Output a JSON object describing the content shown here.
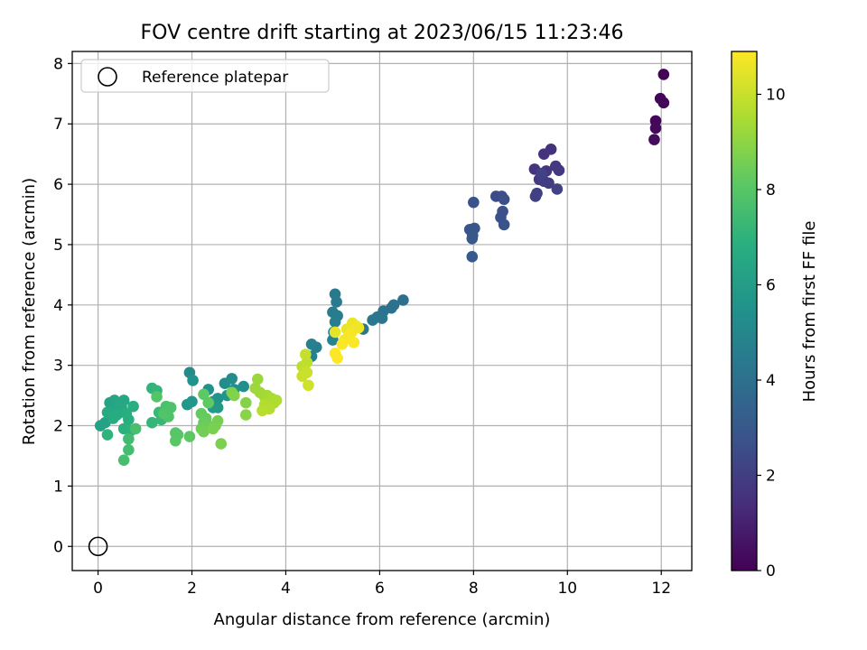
{
  "chart_data": {
    "type": "scatter",
    "title": "FOV centre drift starting at 2023/06/15 11:23:46",
    "xlabel": "Angular distance from reference (arcmin)",
    "ylabel": "Rotation from reference (arcmin)",
    "xlim": [
      -0.55,
      12.65
    ],
    "ylim": [
      -0.4,
      8.2
    ],
    "xticks": [
      "0",
      "2",
      "4",
      "6",
      "8",
      "10",
      "12"
    ],
    "yticks": [
      "0",
      "1",
      "2",
      "3",
      "4",
      "5",
      "6",
      "7",
      "8"
    ],
    "grid": true,
    "legend": {
      "placement": "top-left",
      "entries": [
        "Reference platepar"
      ]
    },
    "reference_point": {
      "x": 0,
      "y": 0,
      "label": "Reference platepar"
    },
    "colorbar": {
      "label": "Hours from first FF file",
      "colormap": "viridis",
      "range": [
        0,
        10.9
      ],
      "ticks": [
        "0",
        "2",
        "4",
        "6",
        "8",
        "10"
      ]
    },
    "series": [
      {
        "name": "",
        "points": [
          [
            12.05,
            7.82,
            0.05
          ],
          [
            11.98,
            7.42,
            0.1
          ],
          [
            12.05,
            7.35,
            0.15
          ],
          [
            11.88,
            7.05,
            0.2
          ],
          [
            11.88,
            6.93,
            0.25
          ],
          [
            11.85,
            6.74,
            0.3
          ],
          [
            9.5,
            6.5,
            1.5
          ],
          [
            9.65,
            6.58,
            1.55
          ],
          [
            9.3,
            6.25,
            1.6
          ],
          [
            9.45,
            6.15,
            1.65
          ],
          [
            9.55,
            6.22,
            1.7
          ],
          [
            9.75,
            6.3,
            1.75
          ],
          [
            9.82,
            6.23,
            1.8
          ],
          [
            9.4,
            6.08,
            1.85
          ],
          [
            9.5,
            6.05,
            1.9
          ],
          [
            9.6,
            6.02,
            1.95
          ],
          [
            9.35,
            5.85,
            2.0
          ],
          [
            9.32,
            5.8,
            2.05
          ],
          [
            9.78,
            5.92,
            2.1
          ],
          [
            9.45,
            6.18,
            2.12
          ],
          [
            8.48,
            5.8,
            2.5
          ],
          [
            8.6,
            5.8,
            2.55
          ],
          [
            8.65,
            5.75,
            2.6
          ],
          [
            8.62,
            5.55,
            2.65
          ],
          [
            8.58,
            5.45,
            2.7
          ],
          [
            8.65,
            5.33,
            2.75
          ],
          [
            8.0,
            5.7,
            2.8
          ],
          [
            7.92,
            5.25,
            2.85
          ],
          [
            8.02,
            5.27,
            2.9
          ],
          [
            7.98,
            5.15,
            2.95
          ],
          [
            7.97,
            5.1,
            3.0
          ],
          [
            7.97,
            4.8,
            3.05
          ],
          [
            6.5,
            4.08,
            4.0
          ],
          [
            6.3,
            4.0,
            4.05
          ],
          [
            6.25,
            3.95,
            4.1
          ],
          [
            6.08,
            3.9,
            4.15
          ],
          [
            6.05,
            3.78,
            4.2
          ],
          [
            5.95,
            3.8,
            4.25
          ],
          [
            5.85,
            3.75,
            4.3
          ],
          [
            5.65,
            3.6,
            4.35
          ],
          [
            5.05,
            4.18,
            4.4
          ],
          [
            5.08,
            4.05,
            4.45
          ],
          [
            5.0,
            3.88,
            4.5
          ],
          [
            5.1,
            3.82,
            4.55
          ],
          [
            5.05,
            3.72,
            4.6
          ],
          [
            4.65,
            3.3,
            4.65
          ],
          [
            4.55,
            3.35,
            4.7
          ],
          [
            4.55,
            3.15,
            4.75
          ],
          [
            5.02,
            3.55,
            4.8
          ],
          [
            5.0,
            3.42,
            4.85
          ],
          [
            1.95,
            2.88,
            5.2
          ],
          [
            2.85,
            2.78,
            5.25
          ],
          [
            2.7,
            2.7,
            5.3
          ],
          [
            3.1,
            2.65,
            5.35
          ],
          [
            2.9,
            2.6,
            5.4
          ],
          [
            2.35,
            2.6,
            5.45
          ],
          [
            2.02,
            2.75,
            5.5
          ],
          [
            2.55,
            2.45,
            5.55
          ],
          [
            2.75,
            2.5,
            5.6
          ],
          [
            2.45,
            2.4,
            5.65
          ],
          [
            2.0,
            2.4,
            5.7
          ],
          [
            1.9,
            2.35,
            5.75
          ],
          [
            2.55,
            2.3,
            5.8
          ],
          [
            2.45,
            2.3,
            5.85
          ],
          [
            0.05,
            2.0,
            6.2
          ],
          [
            0.15,
            2.05,
            6.25
          ],
          [
            0.25,
            2.38,
            6.3
          ],
          [
            0.35,
            2.42,
            6.35
          ],
          [
            0.3,
            2.3,
            6.4
          ],
          [
            0.45,
            2.38,
            6.45
          ],
          [
            0.55,
            2.42,
            6.5
          ],
          [
            0.5,
            2.3,
            6.55
          ],
          [
            0.2,
            2.22,
            6.6
          ],
          [
            0.32,
            2.12,
            6.65
          ],
          [
            0.4,
            2.18,
            6.7
          ],
          [
            0.6,
            2.2,
            6.75
          ],
          [
            0.75,
            2.32,
            6.8
          ],
          [
            0.65,
            2.1,
            6.85
          ],
          [
            0.55,
            1.95,
            6.9
          ],
          [
            0.7,
            1.92,
            6.95
          ],
          [
            0.2,
            1.85,
            7.0
          ],
          [
            1.15,
            2.62,
            7.05
          ],
          [
            1.25,
            2.58,
            7.1
          ],
          [
            1.15,
            2.05,
            7.15
          ],
          [
            1.35,
            2.1,
            7.2
          ],
          [
            1.3,
            2.22,
            7.25
          ],
          [
            0.65,
            1.78,
            7.5
          ],
          [
            0.65,
            1.6,
            7.55
          ],
          [
            0.55,
            1.43,
            7.6
          ],
          [
            0.8,
            1.95,
            7.65
          ],
          [
            1.45,
            2.32,
            7.7
          ],
          [
            1.55,
            2.3,
            7.75
          ],
          [
            1.5,
            2.15,
            7.8
          ],
          [
            1.4,
            2.2,
            7.85
          ],
          [
            1.25,
            2.48,
            7.9
          ],
          [
            1.65,
            1.88,
            7.95
          ],
          [
            1.7,
            1.85,
            8.0
          ],
          [
            1.65,
            1.75,
            8.05
          ],
          [
            1.95,
            1.82,
            8.1
          ],
          [
            2.25,
            2.52,
            8.15
          ],
          [
            2.35,
            2.38,
            8.2
          ],
          [
            2.2,
            2.2,
            8.25
          ],
          [
            2.3,
            2.12,
            8.3
          ],
          [
            2.25,
            2.05,
            8.35
          ],
          [
            2.35,
            2.0,
            8.4
          ],
          [
            2.2,
            1.95,
            8.45
          ],
          [
            2.25,
            1.9,
            8.5
          ],
          [
            2.55,
            2.08,
            8.55
          ],
          [
            2.5,
            2.0,
            8.6
          ],
          [
            2.45,
            1.95,
            8.65
          ],
          [
            2.62,
            1.7,
            8.7
          ],
          [
            2.85,
            2.55,
            8.75
          ],
          [
            2.9,
            2.5,
            8.8
          ],
          [
            3.15,
            2.38,
            8.85
          ],
          [
            3.15,
            2.18,
            8.9
          ],
          [
            3.4,
            2.77,
            9.2
          ],
          [
            3.35,
            2.62,
            9.25
          ],
          [
            3.45,
            2.55,
            9.3
          ],
          [
            3.55,
            2.48,
            9.35
          ],
          [
            3.6,
            2.5,
            9.4
          ],
          [
            3.7,
            2.45,
            9.45
          ],
          [
            3.75,
            2.38,
            9.5
          ],
          [
            3.8,
            2.42,
            9.55
          ],
          [
            3.55,
            2.35,
            9.6
          ],
          [
            3.65,
            2.28,
            9.65
          ],
          [
            3.5,
            2.25,
            9.7
          ],
          [
            4.35,
            2.98,
            9.75
          ],
          [
            4.4,
            3.0,
            9.8
          ],
          [
            4.45,
            3.05,
            9.85
          ],
          [
            4.4,
            2.9,
            9.9
          ],
          [
            4.42,
            3.18,
            9.95
          ],
          [
            4.35,
            2.82,
            10.0
          ],
          [
            4.45,
            2.88,
            10.05
          ],
          [
            4.48,
            2.67,
            10.1
          ],
          [
            5.05,
            3.55,
            10.5
          ],
          [
            5.3,
            3.6,
            10.55
          ],
          [
            5.42,
            3.7,
            10.6
          ],
          [
            5.5,
            3.65,
            10.65
          ],
          [
            5.55,
            3.62,
            10.7
          ],
          [
            5.4,
            3.55,
            10.75
          ],
          [
            5.35,
            3.5,
            10.8
          ],
          [
            5.25,
            3.42,
            10.8
          ],
          [
            5.2,
            3.35,
            10.85
          ],
          [
            5.45,
            3.38,
            10.85
          ],
          [
            5.05,
            3.2,
            10.9
          ],
          [
            5.1,
            3.12,
            10.9
          ]
        ]
      }
    ]
  }
}
